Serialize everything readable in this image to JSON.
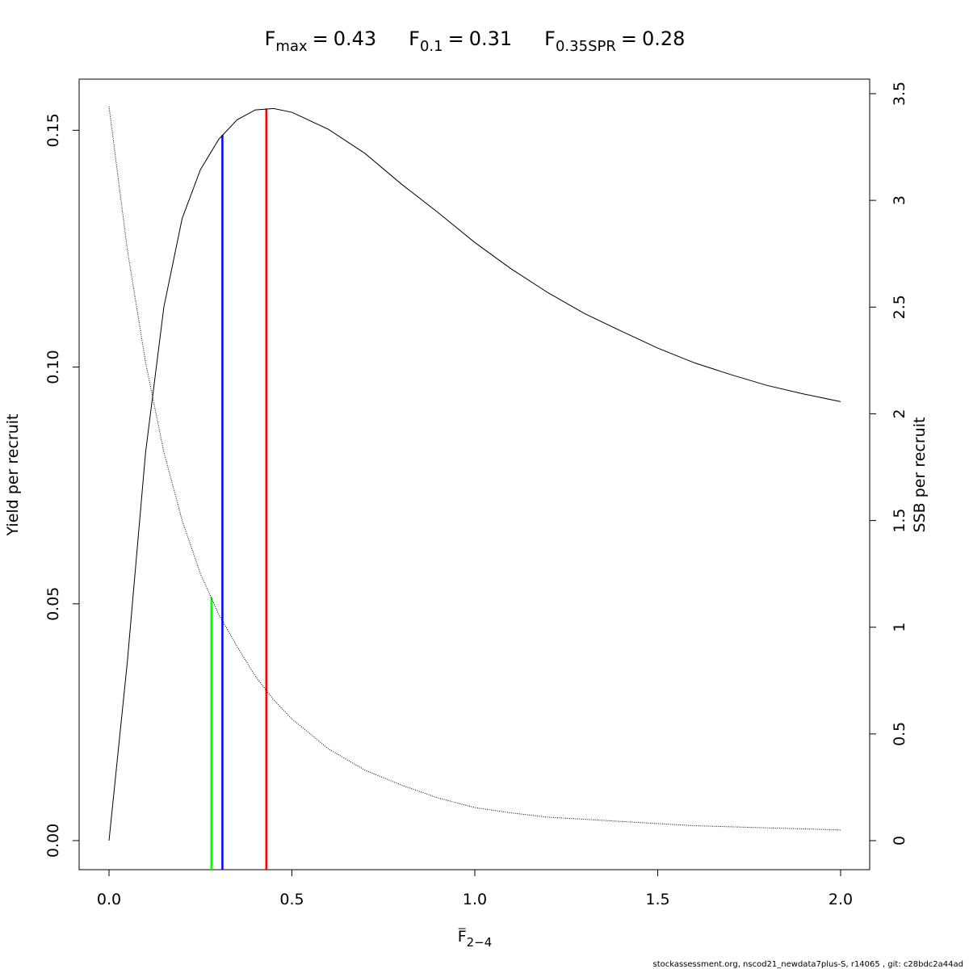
{
  "chart_data": {
    "type": "line",
    "reference_points": [
      {
        "symbol": "F",
        "subscript": "max",
        "relation": "=",
        "value": 0.43,
        "color": "#ff0000",
        "height": 0.1546,
        "axis": "y"
      },
      {
        "symbol": "F",
        "subscript": "0.1",
        "relation": "=",
        "value": 0.31,
        "color": "#0000ff",
        "height": 0.149,
        "axis": "y"
      },
      {
        "symbol": "F",
        "subscript": "0.35SPR",
        "relation": "=",
        "value": 0.28,
        "color": "#00ff00",
        "height": 1.14,
        "axis": "y2"
      }
    ],
    "xlabel": {
      "symbol": "F",
      "subscript": "2−4"
    },
    "ylabel": "Yield per recruit",
    "y2label": "SSB per recruit",
    "footer": "stockassessment.org, nscod21_newdata7plus-S, r14065 , git: c28bdc2a44ad",
    "x": [
      0,
      0.05,
      0.1,
      0.15,
      0.2,
      0.25,
      0.3,
      0.35,
      0.4,
      0.45,
      0.5,
      0.6,
      0.7,
      0.8,
      0.9,
      1.0,
      1.1,
      1.2,
      1.3,
      1.4,
      1.5,
      1.6,
      1.7,
      1.8,
      1.9,
      2.0
    ],
    "series": [
      {
        "name": "Yield per recruit",
        "color": "#000000",
        "dash": "solid",
        "axis": "y",
        "values": [
          0,
          0.0377,
          0.082,
          0.1127,
          0.1314,
          0.1417,
          0.1481,
          0.1522,
          0.1543,
          0.1546,
          0.1538,
          0.1502,
          0.1451,
          0.1386,
          0.1326,
          0.1263,
          0.1207,
          0.1157,
          0.1113,
          0.1076,
          0.104,
          0.1009,
          0.0984,
          0.0961,
          0.0943,
          0.0927
        ]
      },
      {
        "name": "SSB per recruit",
        "color": "#000000",
        "dash": "dotted",
        "axis": "y2",
        "values": [
          3.44,
          2.77,
          2.24,
          1.82,
          1.5,
          1.25,
          1.06,
          0.91,
          0.77,
          0.66,
          0.57,
          0.43,
          0.33,
          0.26,
          0.2,
          0.155,
          0.13,
          0.11,
          0.1,
          0.09,
          0.08,
          0.07,
          0.065,
          0.06,
          0.055,
          0.05
        ]
      }
    ],
    "xlim": [
      -0.0817,
      2.0795
    ],
    "ylim": [
      -0.00614,
      0.1608
    ],
    "y2lim": [
      -0.136,
      3.568
    ],
    "xticks": [
      {
        "value": 0,
        "label": "0.0"
      },
      {
        "value": 0.5,
        "label": "0.5"
      },
      {
        "value": 1,
        "label": "1.0"
      },
      {
        "value": 1.5,
        "label": "1.5"
      },
      {
        "value": 2,
        "label": "2.0"
      }
    ],
    "yticks": [
      {
        "value": 0,
        "label": "0.00"
      },
      {
        "value": 0.05,
        "label": "0.05"
      },
      {
        "value": 0.1,
        "label": "0.10"
      },
      {
        "value": 0.15,
        "label": "0.15"
      }
    ],
    "y2ticks": [
      0,
      0.5,
      1,
      1.5,
      2,
      2.5,
      3,
      3.5
    ],
    "grid": false
  }
}
